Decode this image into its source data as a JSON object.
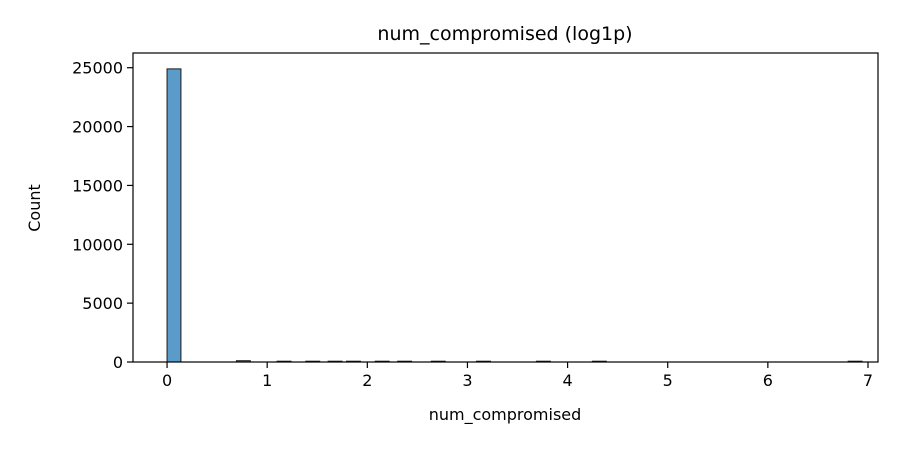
{
  "chart_data": {
    "type": "bar",
    "title": "num_compromised (log1p)",
    "xlabel": "num_compromised",
    "ylabel": "Count",
    "xlim": [
      -0.34,
      7.1
    ],
    "ylim": [
      0,
      26250
    ],
    "xticks": [
      0,
      1,
      2,
      3,
      4,
      5,
      6,
      7
    ],
    "yticks": [
      0,
      5000,
      10000,
      15000,
      20000,
      25000
    ],
    "bin_width": 0.1386,
    "bins": [
      {
        "x0": 0.0,
        "count": 24900
      },
      {
        "x0": 0.693,
        "count": 110
      },
      {
        "x0": 1.099,
        "count": 12
      },
      {
        "x0": 1.386,
        "count": 8
      },
      {
        "x0": 1.609,
        "count": 5
      },
      {
        "x0": 1.792,
        "count": 4
      },
      {
        "x0": 2.079,
        "count": 6
      },
      {
        "x0": 2.303,
        "count": 3
      },
      {
        "x0": 2.639,
        "count": 2
      },
      {
        "x0": 3.091,
        "count": 2
      },
      {
        "x0": 3.689,
        "count": 1
      },
      {
        "x0": 4.248,
        "count": 1
      },
      {
        "x0": 6.802,
        "count": 1
      }
    ],
    "grid": false,
    "color": "#5b9bc9"
  }
}
